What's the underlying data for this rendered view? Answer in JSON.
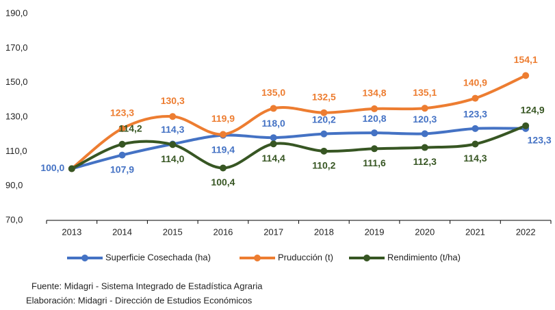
{
  "chart_data": {
    "type": "line",
    "categories": [
      "2013",
      "2014",
      "2015",
      "2016",
      "2017",
      "2018",
      "2019",
      "2020",
      "2021",
      "2022"
    ],
    "series": [
      {
        "name": "Superficie Cosechada (ha)",
        "color": "#4472c4",
        "values": [
          100.0,
          107.9,
          114.3,
          119.4,
          118.0,
          120.2,
          120.8,
          120.3,
          123.3,
          123.3
        ],
        "value_labels": [
          "100,0",
          "107,9",
          "114,3",
          "119,4",
          "118,0",
          "120,2",
          "120,8",
          "120,3",
          "123,3",
          "123,3"
        ]
      },
      {
        "name": "Pruducción (t)",
        "color": "#ed7d31",
        "values": [
          100.0,
          123.3,
          130.3,
          119.9,
          135.0,
          132.5,
          134.8,
          135.1,
          140.9,
          154.1
        ],
        "value_labels": [
          null,
          "123,3",
          "130,3",
          "119,9",
          "135,0",
          "132,5",
          "134,8",
          "135,1",
          "140,9",
          "154,1"
        ]
      },
      {
        "name": "Rendimiento (t/ha)",
        "color": "#375623",
        "values": [
          100.0,
          114.2,
          114.0,
          100.4,
          114.4,
          110.2,
          111.6,
          112.3,
          114.3,
          124.9
        ],
        "value_labels": [
          null,
          "114,2",
          "114,0",
          "100,4",
          "114,4",
          "110,2",
          "111,6",
          "112,3",
          "114,3",
          "124,9"
        ]
      }
    ],
    "ylim": [
      70,
      190
    ],
    "yticks": [
      {
        "value": 70,
        "label": "70,0"
      },
      {
        "value": 90,
        "label": "90,0"
      },
      {
        "value": 110,
        "label": "110,0"
      },
      {
        "value": 130,
        "label": "130,0"
      },
      {
        "value": 150,
        "label": "150,0"
      },
      {
        "value": 170,
        "label": "170,0"
      },
      {
        "value": 190,
        "label": "190,0"
      }
    ],
    "grid": false,
    "smooth": true,
    "legend": "bottom",
    "notes": [
      "Fuente: Midagri - Sistema Integrado de Estadística Agraria",
      "Elaboración: Midagri - Dirección de Estudios Económicos"
    ]
  }
}
